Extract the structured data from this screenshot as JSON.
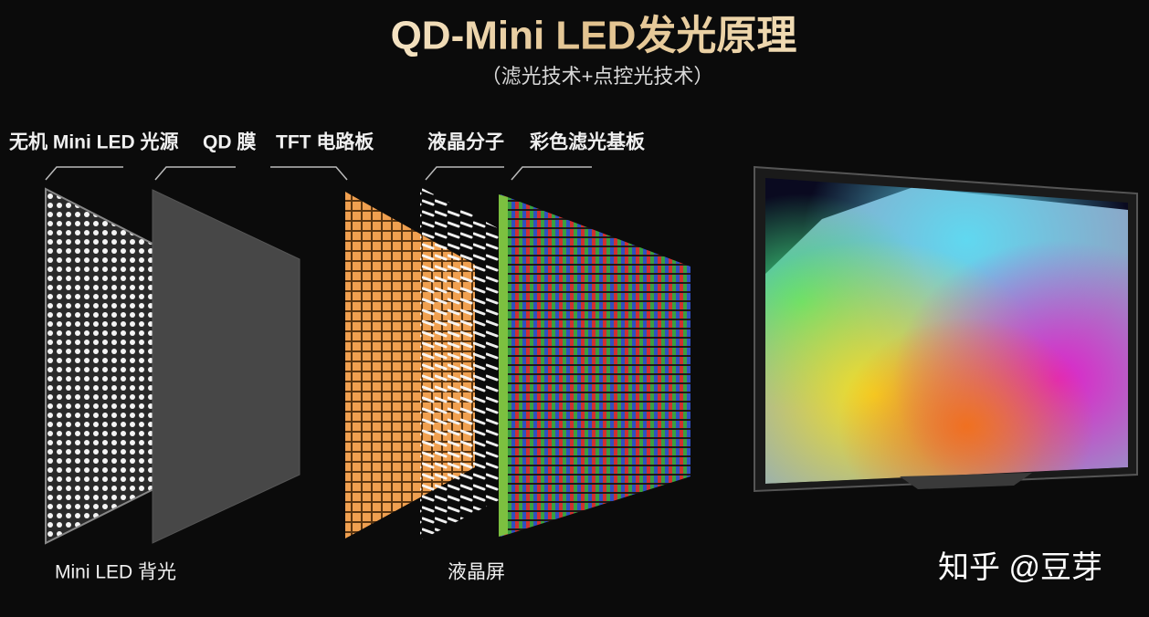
{
  "header": {
    "title": "QD-Mini LED发光原理",
    "subtitle": "（滤光技术+点控光技术）"
  },
  "layers": [
    {
      "label": "无机 Mini LED 光源"
    },
    {
      "label": "QD 膜"
    },
    {
      "label": "TFT 电路板"
    },
    {
      "label": "液晶分子"
    },
    {
      "label": "彩色滤光基板"
    }
  ],
  "groups": [
    {
      "label": "Mini LED 背光"
    },
    {
      "label": "液晶屏"
    }
  ],
  "watermark": "知乎 @豆芽"
}
